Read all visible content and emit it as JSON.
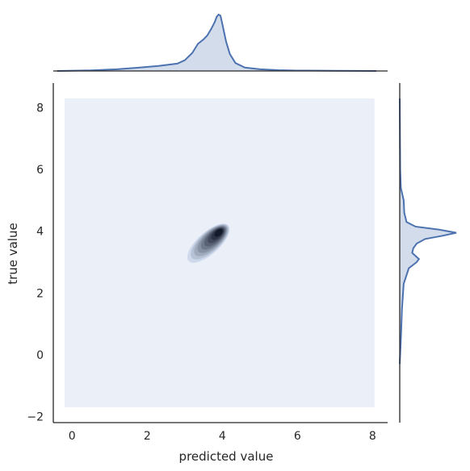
{
  "chart_data": {
    "type": "kde-joint",
    "xlabel": "predicted value",
    "ylabel": "true value",
    "xlim": [
      -0.5,
      8.4
    ],
    "ylim": [
      -2.2,
      8.8
    ],
    "x_ticks": [
      0,
      2,
      4,
      6,
      8
    ],
    "y_ticks": [
      -2,
      0,
      2,
      4,
      6,
      8
    ],
    "grid": false,
    "colors": {
      "line": "#4c72b0",
      "fill": "#4c72b0",
      "contour_background": "#eaeff8",
      "contour_darkest": "#0f1726",
      "axis": "#262626"
    },
    "kde_region": {
      "x": [
        -0.2,
        8.05
      ],
      "y": [
        -1.7,
        8.3
      ]
    },
    "joint_density": {
      "peak": {
        "x": 3.9,
        "y": 3.95
      },
      "secondary": {
        "x": 3.3,
        "y": 3.2
      },
      "levels": 9
    },
    "marginal_x": {
      "x": [
        -0.4,
        0.5,
        1.2,
        1.8,
        2.3,
        2.8,
        3.0,
        3.2,
        3.35,
        3.5,
        3.6,
        3.7,
        3.8,
        3.85,
        3.9,
        3.95,
        4.0,
        4.1,
        4.2,
        4.35,
        4.6,
        5.0,
        5.5,
        6.0,
        7.0,
        8.1
      ],
      "density": [
        0.0,
        0.01,
        0.03,
        0.06,
        0.09,
        0.13,
        0.19,
        0.32,
        0.48,
        0.56,
        0.63,
        0.74,
        0.87,
        0.96,
        1.0,
        0.98,
        0.83,
        0.52,
        0.3,
        0.14,
        0.06,
        0.03,
        0.015,
        0.008,
        0.003,
        0.0
      ]
    },
    "marginal_y": {
      "y": [
        -0.3,
        0.5,
        1.5,
        2.3,
        2.8,
        3.0,
        3.1,
        3.2,
        3.3,
        3.45,
        3.6,
        3.75,
        3.85,
        3.95,
        4.05,
        4.15,
        4.3,
        4.6,
        5.0,
        5.2,
        5.4,
        6.0,
        8.3
      ],
      "density": [
        0.0,
        0.02,
        0.04,
        0.07,
        0.16,
        0.3,
        0.34,
        0.28,
        0.22,
        0.24,
        0.3,
        0.45,
        0.75,
        1.0,
        0.7,
        0.28,
        0.12,
        0.08,
        0.07,
        0.045,
        0.02,
        0.008,
        0.0
      ]
    }
  }
}
